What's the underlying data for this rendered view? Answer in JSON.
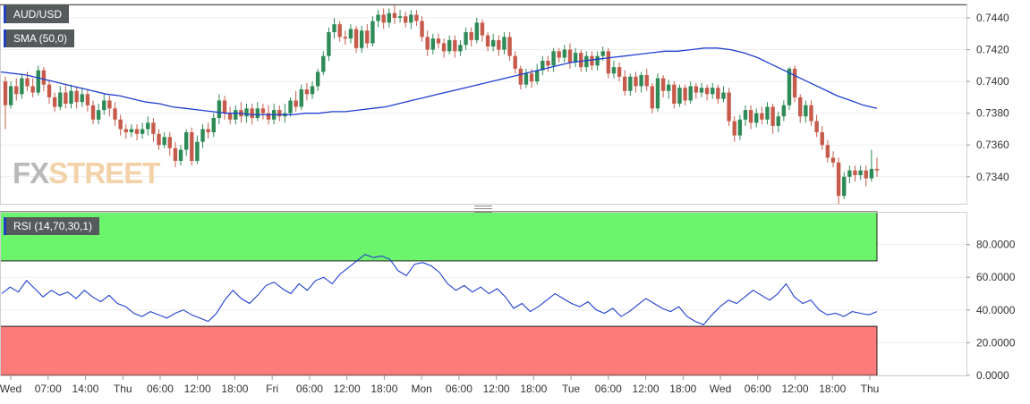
{
  "chart_data": [
    {
      "type": "candlestick",
      "symbol": "AUD/USD",
      "indicator": "SMA (50,0)",
      "y_ticks": [
        "0.7440",
        "0.7420",
        "0.7400",
        "0.7380",
        "0.7360",
        "0.7340"
      ],
      "ylim": [
        0.7323,
        0.7449
      ],
      "x_ticks": [
        "Wed",
        "07:00",
        "14:00",
        "Thu",
        "06:00",
        "12:00",
        "18:00",
        "Fri",
        "06:00",
        "12:00",
        "18:00",
        "Mon",
        "06:00",
        "12:00",
        "18:00",
        "Tue",
        "06:00",
        "12:00",
        "18:00",
        "Wed",
        "06:00",
        "12:00",
        "18:00",
        "Thu"
      ],
      "candles": [
        [
          0.74,
          0.7385,
          0.7403,
          0.737
        ],
        [
          0.7385,
          0.7397,
          0.74,
          0.7383
        ],
        [
          0.7397,
          0.7392,
          0.7402,
          0.7388
        ],
        [
          0.7392,
          0.7402,
          0.7405,
          0.7389
        ],
        [
          0.7402,
          0.7397,
          0.7406,
          0.7394
        ],
        [
          0.7397,
          0.7393,
          0.7402,
          0.739
        ],
        [
          0.7393,
          0.7407,
          0.741,
          0.7391
        ],
        [
          0.7407,
          0.7398,
          0.7409,
          0.7394
        ],
        [
          0.7398,
          0.739,
          0.7401,
          0.7386
        ],
        [
          0.739,
          0.7384,
          0.7393,
          0.7381
        ],
        [
          0.7384,
          0.7393,
          0.7397,
          0.7382
        ],
        [
          0.7393,
          0.7386,
          0.7398,
          0.7383
        ],
        [
          0.7386,
          0.7394,
          0.7398,
          0.7383
        ],
        [
          0.7394,
          0.7387,
          0.7397,
          0.7383
        ],
        [
          0.7387,
          0.7392,
          0.7396,
          0.7384
        ],
        [
          0.7392,
          0.7385,
          0.7395,
          0.7381
        ],
        [
          0.7385,
          0.7376,
          0.7388,
          0.7373
        ],
        [
          0.7376,
          0.7382,
          0.7386,
          0.7373
        ],
        [
          0.7382,
          0.7388,
          0.7392,
          0.7379
        ],
        [
          0.7388,
          0.7383,
          0.7391,
          0.7378
        ],
        [
          0.7383,
          0.7376,
          0.7387,
          0.7372
        ],
        [
          0.7376,
          0.737,
          0.7379,
          0.7366
        ],
        [
          0.737,
          0.7368,
          0.7373,
          0.7364
        ],
        [
          0.7368,
          0.737,
          0.7373,
          0.7365
        ],
        [
          0.737,
          0.7367,
          0.7373,
          0.7363
        ],
        [
          0.7367,
          0.737,
          0.7374,
          0.7364
        ],
        [
          0.737,
          0.7374,
          0.7378,
          0.7366
        ],
        [
          0.7374,
          0.7367,
          0.7377,
          0.7362
        ],
        [
          0.7367,
          0.736,
          0.737,
          0.7357
        ],
        [
          0.736,
          0.7365,
          0.7368,
          0.7358
        ],
        [
          0.7365,
          0.7358,
          0.7368,
          0.7353
        ],
        [
          0.7358,
          0.735,
          0.7362,
          0.7346
        ],
        [
          0.735,
          0.7357,
          0.736,
          0.7347
        ],
        [
          0.7357,
          0.7368,
          0.737,
          0.7353
        ],
        [
          0.7368,
          0.735,
          0.7371,
          0.7347
        ],
        [
          0.735,
          0.7362,
          0.7366,
          0.7348
        ],
        [
          0.7362,
          0.737,
          0.7373,
          0.7358
        ],
        [
          0.737,
          0.7368,
          0.7374,
          0.7364
        ],
        [
          0.7368,
          0.7377,
          0.738,
          0.7365
        ],
        [
          0.7377,
          0.7388,
          0.7392,
          0.7373
        ],
        [
          0.7388,
          0.738,
          0.7391,
          0.7376
        ],
        [
          0.738,
          0.7376,
          0.7384,
          0.7373
        ],
        [
          0.7376,
          0.7382,
          0.7385,
          0.7373
        ],
        [
          0.7382,
          0.7378,
          0.7387,
          0.7374
        ],
        [
          0.7378,
          0.7383,
          0.7386,
          0.7374
        ],
        [
          0.7383,
          0.7377,
          0.7386,
          0.7373
        ],
        [
          0.7377,
          0.7383,
          0.7387,
          0.7375
        ],
        [
          0.7383,
          0.738,
          0.7386,
          0.7376
        ],
        [
          0.738,
          0.7376,
          0.7385,
          0.7373
        ],
        [
          0.7376,
          0.7382,
          0.7386,
          0.7373
        ],
        [
          0.7382,
          0.7378,
          0.7385,
          0.7375
        ],
        [
          0.7378,
          0.738,
          0.7386,
          0.7374
        ],
        [
          0.738,
          0.7388,
          0.739,
          0.7378
        ],
        [
          0.7388,
          0.7384,
          0.7394,
          0.7381
        ],
        [
          0.7384,
          0.7395,
          0.7398,
          0.7382
        ],
        [
          0.7395,
          0.7392,
          0.7399,
          0.7388
        ],
        [
          0.7392,
          0.7397,
          0.74,
          0.7389
        ],
        [
          0.7397,
          0.7406,
          0.7408,
          0.7394
        ],
        [
          0.7406,
          0.7416,
          0.7419,
          0.7404
        ],
        [
          0.7416,
          0.7431,
          0.7434,
          0.7413
        ],
        [
          0.7431,
          0.7436,
          0.744,
          0.7427
        ],
        [
          0.7436,
          0.7428,
          0.7438,
          0.7425
        ],
        [
          0.7428,
          0.7427,
          0.7432,
          0.7423
        ],
        [
          0.7427,
          0.7433,
          0.7436,
          0.7424
        ],
        [
          0.7433,
          0.7421,
          0.7435,
          0.7418
        ],
        [
          0.7421,
          0.7432,
          0.7435,
          0.7418
        ],
        [
          0.7432,
          0.7424,
          0.7436,
          0.7421
        ],
        [
          0.7424,
          0.7438,
          0.7441,
          0.7422
        ],
        [
          0.7438,
          0.7442,
          0.7445,
          0.7434
        ],
        [
          0.7442,
          0.7437,
          0.7446,
          0.7433
        ],
        [
          0.7437,
          0.7443,
          0.7446,
          0.7434
        ],
        [
          0.7443,
          0.744,
          0.7449,
          0.7436
        ],
        [
          0.744,
          0.7441,
          0.7445,
          0.7437
        ],
        [
          0.7441,
          0.7437,
          0.7444,
          0.7434
        ],
        [
          0.7437,
          0.7442,
          0.7445,
          0.7433
        ],
        [
          0.7442,
          0.7438,
          0.7445,
          0.7435
        ],
        [
          0.7438,
          0.7428,
          0.7441,
          0.7425
        ],
        [
          0.7428,
          0.742,
          0.7432,
          0.7416
        ],
        [
          0.742,
          0.7427,
          0.743,
          0.7417
        ],
        [
          0.7427,
          0.7424,
          0.743,
          0.7421
        ],
        [
          0.7424,
          0.7419,
          0.7427,
          0.7415
        ],
        [
          0.7419,
          0.7426,
          0.7429,
          0.7417
        ],
        [
          0.7426,
          0.7419,
          0.7429,
          0.7415
        ],
        [
          0.7419,
          0.7423,
          0.7426,
          0.7416
        ],
        [
          0.7423,
          0.7431,
          0.7434,
          0.742
        ],
        [
          0.7431,
          0.7426,
          0.7434,
          0.7422
        ],
        [
          0.7426,
          0.7437,
          0.744,
          0.7424
        ],
        [
          0.7437,
          0.7429,
          0.7439,
          0.7425
        ],
        [
          0.7429,
          0.7422,
          0.7431,
          0.7419
        ],
        [
          0.7422,
          0.7426,
          0.743,
          0.7419
        ],
        [
          0.7426,
          0.742,
          0.7429,
          0.7416
        ],
        [
          0.742,
          0.7428,
          0.7431,
          0.7417
        ],
        [
          0.7428,
          0.7416,
          0.7431,
          0.7413
        ],
        [
          0.7416,
          0.7408,
          0.7419,
          0.7405
        ],
        [
          0.7408,
          0.7398,
          0.741,
          0.7395
        ],
        [
          0.7398,
          0.7405,
          0.7408,
          0.7396
        ],
        [
          0.7405,
          0.74,
          0.7408,
          0.7396
        ],
        [
          0.74,
          0.7407,
          0.7411,
          0.7398
        ],
        [
          0.7407,
          0.7413,
          0.7416,
          0.7404
        ],
        [
          0.7413,
          0.741,
          0.7416,
          0.7406
        ],
        [
          0.741,
          0.7419,
          0.7421,
          0.7406
        ],
        [
          0.7419,
          0.7415,
          0.7421,
          0.7412
        ],
        [
          0.7415,
          0.742,
          0.7423,
          0.7412
        ],
        [
          0.742,
          0.7412,
          0.7424,
          0.7408
        ],
        [
          0.7412,
          0.7418,
          0.7421,
          0.7409
        ],
        [
          0.7418,
          0.7409,
          0.742,
          0.7406
        ],
        [
          0.7409,
          0.7416,
          0.7419,
          0.7406
        ],
        [
          0.7416,
          0.741,
          0.7419,
          0.7407
        ],
        [
          0.741,
          0.7416,
          0.7419,
          0.7407
        ],
        [
          0.7416,
          0.7419,
          0.7422,
          0.7413
        ],
        [
          0.7419,
          0.7405,
          0.7421,
          0.7402
        ],
        [
          0.7405,
          0.7409,
          0.7413,
          0.7402
        ],
        [
          0.7409,
          0.7403,
          0.7412,
          0.74
        ],
        [
          0.7403,
          0.7394,
          0.7407,
          0.7391
        ],
        [
          0.7394,
          0.7403,
          0.7405,
          0.7391
        ],
        [
          0.7403,
          0.7397,
          0.7406,
          0.7393
        ],
        [
          0.7397,
          0.7404,
          0.7406,
          0.7393
        ],
        [
          0.7404,
          0.7397,
          0.7408,
          0.7394
        ],
        [
          0.7397,
          0.7383,
          0.7399,
          0.738
        ],
        [
          0.7383,
          0.7402,
          0.7405,
          0.7381
        ],
        [
          0.7402,
          0.7394,
          0.7404,
          0.739
        ],
        [
          0.7394,
          0.7398,
          0.7401,
          0.7389
        ],
        [
          0.7398,
          0.7386,
          0.74,
          0.7383
        ],
        [
          0.7386,
          0.7396,
          0.7398,
          0.7384
        ],
        [
          0.7396,
          0.7388,
          0.7398,
          0.7385
        ],
        [
          0.7388,
          0.7397,
          0.74,
          0.7386
        ],
        [
          0.7397,
          0.7393,
          0.7399,
          0.7389
        ],
        [
          0.7393,
          0.7396,
          0.7399,
          0.739
        ],
        [
          0.7396,
          0.7392,
          0.7398,
          0.7388
        ],
        [
          0.7392,
          0.7396,
          0.7399,
          0.7389
        ],
        [
          0.7396,
          0.7389,
          0.7398,
          0.7386
        ],
        [
          0.7389,
          0.7393,
          0.7397,
          0.7387
        ],
        [
          0.7393,
          0.7375,
          0.7396,
          0.7372
        ],
        [
          0.7375,
          0.7366,
          0.7378,
          0.7362
        ],
        [
          0.7366,
          0.7376,
          0.7379,
          0.7363
        ],
        [
          0.7376,
          0.7382,
          0.7385,
          0.7372
        ],
        [
          0.7382,
          0.7374,
          0.7385,
          0.737
        ],
        [
          0.7374,
          0.738,
          0.7383,
          0.7371
        ],
        [
          0.738,
          0.7376,
          0.7384,
          0.7373
        ],
        [
          0.7376,
          0.7384,
          0.7387,
          0.7373
        ],
        [
          0.7384,
          0.7372,
          0.7386,
          0.7367
        ],
        [
          0.7372,
          0.7378,
          0.7381,
          0.7368
        ],
        [
          0.7378,
          0.7385,
          0.7388,
          0.7375
        ],
        [
          0.7385,
          0.7408,
          0.7409,
          0.7382
        ],
        [
          0.7408,
          0.739,
          0.741,
          0.7387
        ],
        [
          0.739,
          0.7378,
          0.7392,
          0.7374
        ],
        [
          0.7378,
          0.7385,
          0.7388,
          0.7374
        ],
        [
          0.7385,
          0.7375,
          0.7388,
          0.7372
        ],
        [
          0.7375,
          0.7368,
          0.7379,
          0.7365
        ],
        [
          0.7368,
          0.736,
          0.7372,
          0.7357
        ],
        [
          0.736,
          0.7352,
          0.7363,
          0.7349
        ],
        [
          0.7352,
          0.7349,
          0.7356,
          0.7346
        ],
        [
          0.7349,
          0.7328,
          0.7352,
          0.7323
        ],
        [
          0.7328,
          0.734,
          0.7343,
          0.7326
        ],
        [
          0.734,
          0.7344,
          0.7347,
          0.7336
        ],
        [
          0.7344,
          0.7341,
          0.7347,
          0.7337
        ],
        [
          0.7341,
          0.7344,
          0.7347,
          0.7338
        ],
        [
          0.7344,
          0.7339,
          0.7347,
          0.7334
        ],
        [
          0.7339,
          0.7345,
          0.7357,
          0.7337
        ],
        [
          0.7345,
          0.7344,
          0.7352,
          0.734
        ]
      ],
      "sma": [
        0.7406,
        0.7405,
        0.7404,
        0.7402,
        0.74,
        0.7398,
        0.7396,
        0.7394,
        0.7392,
        0.7391,
        0.7389,
        0.7387,
        0.7386,
        0.7384,
        0.7383,
        0.7382,
        0.7381,
        0.738,
        0.738,
        0.7379,
        0.7379,
        0.7379,
        0.7379,
        0.738,
        0.738,
        0.7381,
        0.7381,
        0.7382,
        0.7383,
        0.7384,
        0.7386,
        0.7388,
        0.739,
        0.7392,
        0.7394,
        0.7396,
        0.7398,
        0.74,
        0.7402,
        0.7404,
        0.7406,
        0.7408,
        0.741,
        0.7412,
        0.7413,
        0.7414,
        0.7415,
        0.7416,
        0.7417,
        0.7418,
        0.7419,
        0.7419,
        0.742,
        0.7421,
        0.7421,
        0.742,
        0.7418,
        0.7415,
        0.7411,
        0.7407,
        0.7403,
        0.7399,
        0.7395,
        0.7391,
        0.7388,
        0.7385,
        0.7383
      ]
    },
    {
      "type": "line",
      "indicator": "RSI (14,70,30,1)",
      "y_ticks": [
        "80.0000",
        "60.0000",
        "40.0000",
        "20.0000",
        "0.0000"
      ],
      "ylim": [
        0,
        100
      ],
      "overbought": 70,
      "oversold": 30,
      "values": [
        50,
        54,
        51,
        58,
        53,
        48,
        52,
        49,
        51,
        47,
        52,
        48,
        45,
        49,
        44,
        42,
        38,
        36,
        39,
        37,
        35,
        38,
        40,
        37,
        35,
        33,
        38,
        46,
        52,
        47,
        44,
        49,
        55,
        57,
        53,
        50,
        56,
        52,
        58,
        60,
        56,
        62,
        66,
        70,
        74,
        72,
        73,
        71,
        64,
        61,
        68,
        69,
        67,
        63,
        56,
        52,
        55,
        51,
        54,
        50,
        53,
        48,
        41,
        44,
        39,
        42,
        46,
        50,
        47,
        44,
        42,
        45,
        40,
        38,
        41,
        36,
        39,
        43,
        47,
        44,
        41,
        39,
        42,
        36,
        33,
        31,
        37,
        42,
        46,
        44,
        48,
        52,
        49,
        46,
        50,
        56,
        48,
        44,
        46,
        40,
        37,
        38,
        36,
        39,
        38,
        37,
        39
      ]
    }
  ],
  "logo": {
    "part1": "FX",
    "part2": "STREET"
  }
}
